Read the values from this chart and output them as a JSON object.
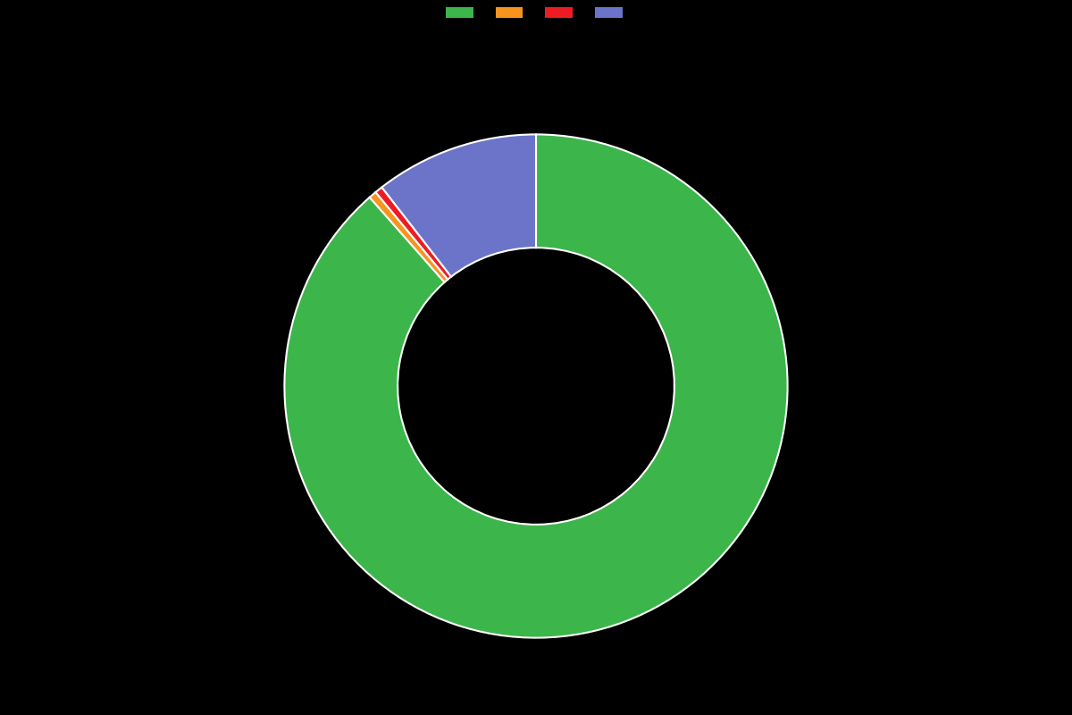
{
  "values": [
    88.5,
    0.5,
    0.5,
    10.5
  ],
  "colors": [
    "#3cb54a",
    "#f7941d",
    "#ed1c24",
    "#6b74c8"
  ],
  "labels": [
    "",
    "",
    "",
    ""
  ],
  "background_color": "#000000",
  "wedge_edge_color": "#ffffff",
  "wedge_edge_width": 1.5,
  "donut_width": 0.45,
  "legend_colors": [
    "#3cb54a",
    "#f7941d",
    "#ed1c24",
    "#6b74c8"
  ],
  "figsize": [
    12,
    8
  ],
  "dpi": 100,
  "startangle": 90
}
